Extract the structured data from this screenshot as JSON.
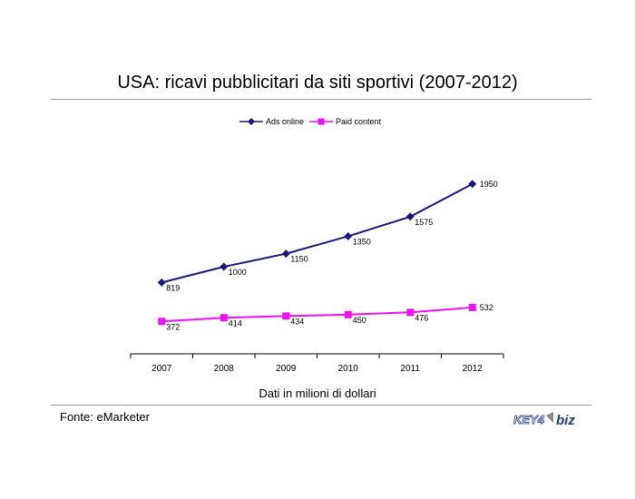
{
  "title": "USA: ricavi pubblicitari da siti sportivi (2007-2012)",
  "note": "Dati in milioni di dollari",
  "source": "Fonte: eMarketer",
  "logo": {
    "text_left": "KEY4",
    "text_right": "biz",
    "color_main": "#1d3a8a",
    "color_accent": "#8a8a8a"
  },
  "colors": {
    "ads_online": "#1a1a7a",
    "paid_content": "#ee11ee",
    "axis": "#000000",
    "rule": "#9a9a9a"
  },
  "chart_data": {
    "type": "line",
    "categories": [
      "2007",
      "2008",
      "2009",
      "2010",
      "2011",
      "2012"
    ],
    "series": [
      {
        "name": "Ads online",
        "marker": "diamond",
        "values": [
          819,
          1000,
          1150,
          1350,
          1575,
          1950
        ]
      },
      {
        "name": "Paid content",
        "marker": "square",
        "values": [
          372,
          414,
          434,
          450,
          476,
          532
        ]
      }
    ],
    "ylim": [
      0,
      2500
    ],
    "grid": false,
    "legend": "top-center",
    "xlabel": "",
    "ylabel": ""
  }
}
